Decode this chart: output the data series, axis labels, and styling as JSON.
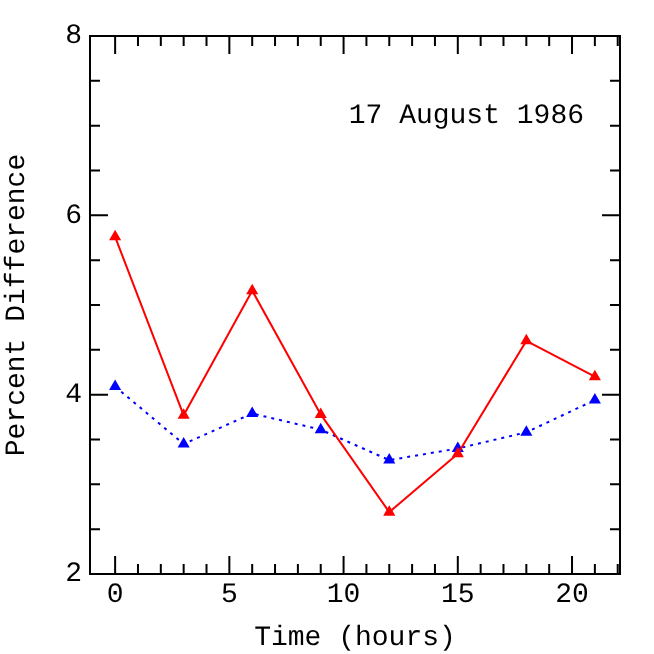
{
  "chart_data": {
    "type": "line",
    "xlabel": "Time (hours)",
    "ylabel": "Percent Difference",
    "annotations": [
      "17 August 1986"
    ],
    "xlim": [
      -1.1,
      22.1
    ],
    "ylim": [
      2,
      8
    ],
    "xticks": [
      0,
      {
        "value": 1,
        "label": null
      },
      {
        "value": 2,
        "label": null
      },
      {
        "value": 3,
        "label": null
      },
      {
        "value": 4,
        "label": null
      },
      5,
      {
        "value": 6,
        "label": null
      },
      {
        "value": 7,
        "label": null
      },
      {
        "value": 8,
        "label": null
      },
      {
        "value": 9,
        "label": null
      },
      10,
      {
        "value": 11,
        "label": null
      },
      {
        "value": 12,
        "label": null
      },
      {
        "value": 13,
        "label": null
      },
      {
        "value": 14,
        "label": null
      },
      15,
      {
        "value": 16,
        "label": null
      },
      {
        "value": 17,
        "label": null
      },
      {
        "value": 18,
        "label": null
      },
      {
        "value": 19,
        "label": null
      },
      20,
      {
        "value": 21,
        "label": null
      },
      {
        "value": 22,
        "label": null
      }
    ],
    "yticks": [
      2,
      {
        "value": 2.5,
        "label": null
      },
      {
        "value": 3,
        "label": null
      },
      {
        "value": 3.5,
        "label": null
      },
      4,
      {
        "value": 4.5,
        "label": null
      },
      {
        "value": 5,
        "label": null
      },
      {
        "value": 5.5,
        "label": null
      },
      6,
      {
        "value": 6.5,
        "label": null
      },
      {
        "value": 7,
        "label": null
      },
      {
        "value": 7.5,
        "label": null
      },
      8
    ],
    "x": [
      0,
      3,
      6,
      9,
      12,
      15,
      18,
      21
    ],
    "marker": "triangle",
    "grid": false,
    "legend": false,
    "series": [
      {
        "color": "#ff0000",
        "line_style": "solid",
        "values": [
          5.76,
          3.77,
          5.16,
          3.78,
          2.69,
          3.34,
          4.6,
          4.2
        ]
      },
      {
        "color": "#0000ff",
        "line_style": "dotted",
        "values": [
          4.09,
          3.45,
          3.79,
          3.61,
          3.27,
          3.4,
          3.58,
          3.94
        ]
      }
    ]
  }
}
